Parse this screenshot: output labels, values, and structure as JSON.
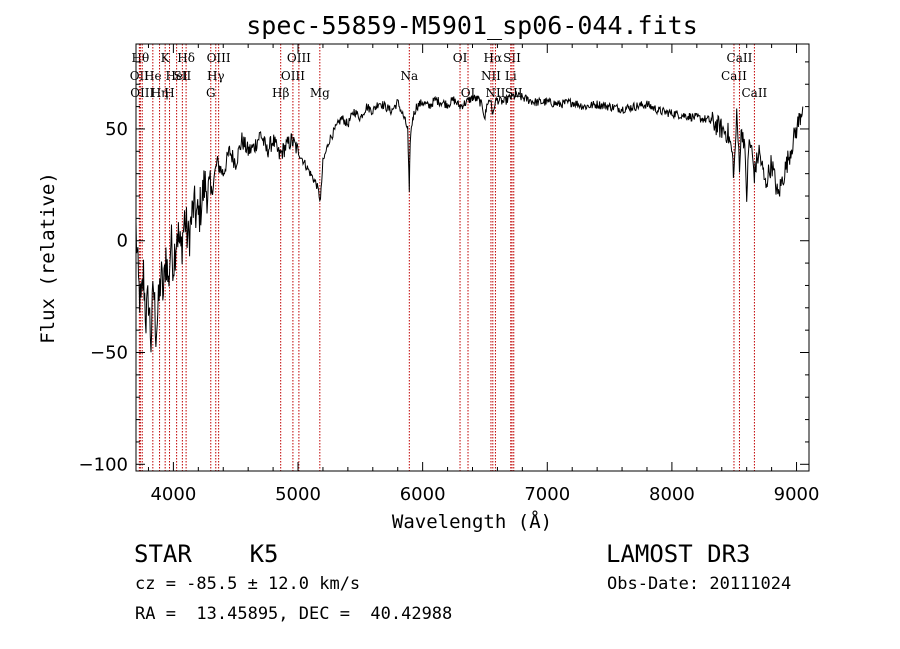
{
  "chart_data": {
    "type": "line",
    "title": "spec-55859-M5901_sp06-044.fits",
    "xlabel": "Wavelength (Å)",
    "ylabel": "Flux (relative)",
    "xlim": [
      3700,
      9100
    ],
    "ylim": [
      -103,
      88
    ],
    "x_ticks": [
      4000,
      5000,
      6000,
      7000,
      8000,
      9000
    ],
    "x_tick_labels": [
      "4000",
      "5000",
      "6000",
      "7000",
      "8000",
      "9000"
    ],
    "y_ticks": [
      -100,
      -50,
      0,
      50
    ],
    "y_tick_labels": [
      "−100",
      "−50",
      "0",
      "50"
    ],
    "series": [
      {
        "name": "spectrum",
        "color": "#000000",
        "x": [
          3700,
          3720,
          3740,
          3760,
          3780,
          3800,
          3820,
          3840,
          3860,
          3880,
          3900,
          3920,
          3940,
          3960,
          3980,
          4000,
          4030,
          4060,
          4090,
          4120,
          4160,
          4200,
          4250,
          4300,
          4350,
          4400,
          4450,
          4500,
          4550,
          4600,
          4650,
          4700,
          4750,
          4800,
          4850,
          4900,
          4950,
          5000,
          5050,
          5100,
          5150,
          5180,
          5200,
          5250,
          5300,
          5350,
          5400,
          5450,
          5500,
          5550,
          5600,
          5650,
          5700,
          5750,
          5800,
          5850,
          5880,
          5893,
          5900,
          5920,
          5950,
          6000,
          6050,
          6100,
          6150,
          6200,
          6250,
          6300,
          6350,
          6400,
          6450,
          6480,
          6500,
          6520,
          6550,
          6563,
          6580,
          6600,
          6650,
          6700,
          6750,
          6800,
          6900,
          7000,
          7100,
          7200,
          7300,
          7400,
          7500,
          7600,
          7700,
          7800,
          7900,
          8000,
          8100,
          8200,
          8300,
          8350,
          8400,
          8450,
          8480,
          8498,
          8520,
          8542,
          8560,
          8580,
          8600,
          8620,
          8640,
          8662,
          8680,
          8700,
          8750,
          8800,
          8850,
          8900,
          8950,
          9000,
          9050
        ],
        "y": [
          5,
          -20,
          -30,
          -15,
          -35,
          -25,
          -45,
          -20,
          -40,
          -30,
          -15,
          -25,
          -5,
          -20,
          0,
          -10,
          5,
          -5,
          10,
          0,
          15,
          10,
          25,
          20,
          35,
          30,
          40,
          35,
          45,
          40,
          42,
          48,
          40,
          45,
          38,
          42,
          45,
          40,
          35,
          30,
          25,
          18,
          35,
          45,
          50,
          55,
          52,
          58,
          55,
          60,
          58,
          62,
          60,
          58,
          62,
          55,
          50,
          20,
          45,
          55,
          60,
          62,
          60,
          63,
          62,
          61,
          63,
          60,
          62,
          64,
          63,
          60,
          55,
          62,
          63,
          55,
          62,
          63,
          62,
          64,
          65,
          64,
          62,
          62,
          61,
          62,
          60,
          61,
          60,
          59,
          60,
          61,
          58,
          57,
          56,
          55,
          54,
          52,
          50,
          48,
          40,
          30,
          55,
          35,
          50,
          45,
          20,
          45,
          40,
          30,
          35,
          40,
          25,
          35,
          20,
          30,
          40,
          50,
          60
        ]
      }
    ],
    "lines": [
      {
        "wl": 3735,
        "label": "Hθ",
        "tier": 1
      },
      {
        "wl": 3727,
        "label": "OII",
        "tier": 2
      },
      {
        "wl": 3750,
        "label": "OIII",
        "tier": 3
      },
      {
        "wl": 3835,
        "label": "He",
        "tier": 2
      },
      {
        "wl": 3889,
        "label": "Hη",
        "tier": 3
      },
      {
        "wl": 3934,
        "label": "K",
        "tier": 1
      },
      {
        "wl": 3969,
        "label": "H",
        "tier": 3
      },
      {
        "wl": 4026,
        "label": "HeI",
        "tier": 2
      },
      {
        "wl": 4072,
        "label": "SII",
        "tier": 2
      },
      {
        "wl": 4102,
        "label": "Hδ",
        "tier": 1
      },
      {
        "wl": 4300,
        "label": "G",
        "tier": 3
      },
      {
        "wl": 4340,
        "label": "Hγ",
        "tier": 2
      },
      {
        "wl": 4363,
        "label": "OIII",
        "tier": 1
      },
      {
        "wl": 4861,
        "label": "Hβ",
        "tier": 3
      },
      {
        "wl": 4959,
        "label": "OIII",
        "tier": 2
      },
      {
        "wl": 5007,
        "label": "OIII",
        "tier": 1
      },
      {
        "wl": 5175,
        "label": "Mg",
        "tier": 3
      },
      {
        "wl": 5893,
        "label": "Na",
        "tier": 2
      },
      {
        "wl": 6300,
        "label": "OI",
        "tier": 1
      },
      {
        "wl": 6364,
        "label": "OI",
        "tier": 3
      },
      {
        "wl": 6548,
        "label": "NII",
        "tier": 2
      },
      {
        "wl": 6563,
        "label": "Hα",
        "tier": 1
      },
      {
        "wl": 6584,
        "label": "NII",
        "tier": 3
      },
      {
        "wl": 6707,
        "label": "Li",
        "tier": 2
      },
      {
        "wl": 6717,
        "label": "SII",
        "tier": 1
      },
      {
        "wl": 6731,
        "label": "SII",
        "tier": 3
      },
      {
        "wl": 8498,
        "label": "CaII",
        "tier": 2
      },
      {
        "wl": 8542,
        "label": "CaII",
        "tier": 1
      },
      {
        "wl": 8662,
        "label": "CaII",
        "tier": 3
      }
    ]
  },
  "info": {
    "class_text": "STAR    K5",
    "survey": "LAMOST DR3",
    "redshift": "cz = -85.5 ± 12.0 km/s",
    "obs_date": "Obs-Date: 20111024",
    "coords": "RA =  13.45895, DEC =  40.42988"
  }
}
